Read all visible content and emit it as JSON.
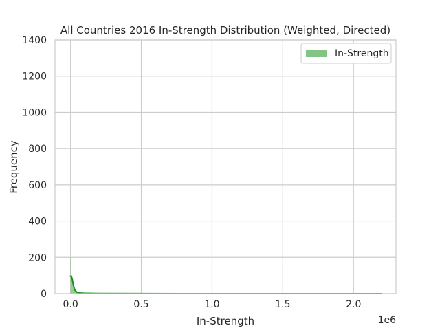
{
  "chart_data": {
    "type": "histogram",
    "title": "All Countries 2016 In-Strength Distribution (Weighted, Directed)",
    "xlabel": "In-Strength",
    "ylabel": "Frequency",
    "x_offset_label": "1e6",
    "xlim": [
      -110000,
      2300000
    ],
    "ylim": [
      0,
      1400
    ],
    "x_ticks": [
      0,
      500000,
      1000000,
      1500000,
      2000000
    ],
    "x_tick_labels": [
      "0.0",
      "0.5",
      "1.0",
      "1.5",
      "2.0"
    ],
    "y_ticks": [
      0,
      200,
      400,
      600,
      800,
      1000,
      1200,
      1400
    ],
    "y_tick_labels": [
      "0",
      "200",
      "400",
      "600",
      "800",
      "1000",
      "1200",
      "1400"
    ],
    "grid": true,
    "legend": {
      "position": "top-right",
      "entries": [
        "In-Strength"
      ]
    },
    "series": [
      {
        "name": "In-Strength",
        "color": "#5bb05b",
        "kde_color": "#1a8f1a",
        "bins": [
          {
            "x0": 0,
            "x1": 4000,
            "count": 200
          },
          {
            "x0": 4000,
            "x1": 8000,
            "count": 100
          },
          {
            "x0": 8000,
            "x1": 12000,
            "count": 80
          },
          {
            "x0": 12000,
            "x1": 16000,
            "count": 55
          },
          {
            "x0": 16000,
            "x1": 20000,
            "count": 40
          },
          {
            "x0": 20000,
            "x1": 24000,
            "count": 32
          },
          {
            "x0": 24000,
            "x1": 28000,
            "count": 25
          },
          {
            "x0": 28000,
            "x1": 32000,
            "count": 18
          },
          {
            "x0": 32000,
            "x1": 36000,
            "count": 14
          },
          {
            "x0": 36000,
            "x1": 40000,
            "count": 10
          },
          {
            "x0": 40000,
            "x1": 48000,
            "count": 8
          },
          {
            "x0": 48000,
            "x1": 56000,
            "count": 6
          },
          {
            "x0": 56000,
            "x1": 70000,
            "count": 4
          },
          {
            "x0": 70000,
            "x1": 90000,
            "count": 3
          },
          {
            "x0": 90000,
            "x1": 120000,
            "count": 2
          },
          {
            "x0": 120000,
            "x1": 200000,
            "count": 1
          },
          {
            "x0": 200000,
            "x1": 400000,
            "count": 1
          }
        ],
        "kde": [
          {
            "x": -5000,
            "y": 96
          },
          {
            "x": 5000,
            "y": 97
          },
          {
            "x": 12000,
            "y": 80
          },
          {
            "x": 20000,
            "y": 45
          },
          {
            "x": 30000,
            "y": 20
          },
          {
            "x": 45000,
            "y": 8
          },
          {
            "x": 65000,
            "y": 4
          },
          {
            "x": 100000,
            "y": 2
          },
          {
            "x": 200000,
            "y": 0.8
          },
          {
            "x": 500000,
            "y": 0.3
          },
          {
            "x": 1000000,
            "y": 0.1
          },
          {
            "x": 2200000,
            "y": 0
          }
        ]
      }
    ]
  }
}
